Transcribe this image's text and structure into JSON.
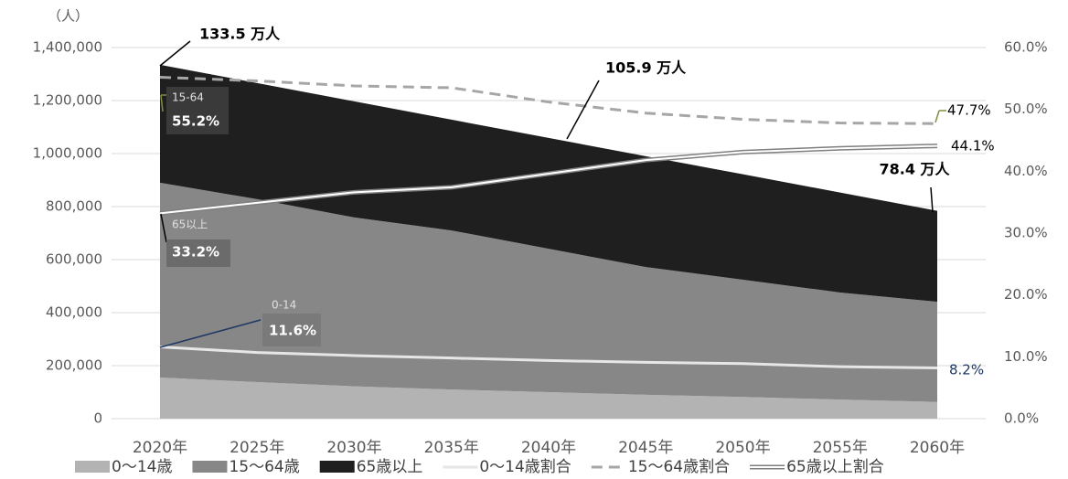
{
  "chart_data": {
    "type": "stacked_area_line",
    "y_unit_label": "（人）",
    "categories": [
      "2020年",
      "2025年",
      "2030年",
      "2035年",
      "2040年",
      "2045年",
      "2050年",
      "2055年",
      "2060年"
    ],
    "series": [
      {
        "name": "0〜14歳",
        "color": "#b3b3b3",
        "values": [
          155000,
          138000,
          122000,
          110000,
          100000,
          90000,
          82000,
          72000,
          63000
        ]
      },
      {
        "name": "15〜64歳",
        "color": "#878787",
        "values": [
          735000,
          690000,
          637000,
          600000,
          541000,
          482000,
          442000,
          404000,
          378000
        ]
      },
      {
        "name": "65歳以上",
        "color": "#1f1f1f",
        "values": [
          445000,
          438000,
          438000,
          418000,
          418000,
          418000,
          398000,
          377000,
          343000
        ]
      },
      {
        "name": "0〜14歳割合",
        "color": "#e6e6e6",
        "axis": "y2",
        "values": [
          11.6,
          10.7,
          10.2,
          9.8,
          9.4,
          9.1,
          8.9,
          8.4,
          8.2
        ]
      },
      {
        "name": "15〜64歳割合",
        "color": "#a6a6a6",
        "axis": "y2",
        "dash": true,
        "values": [
          55.2,
          54.6,
          53.8,
          53.5,
          51.2,
          49.4,
          48.4,
          47.8,
          47.7
        ]
      },
      {
        "name": "65歳以上割合",
        "color": "#7f7f7f",
        "axis": "y2",
        "double": true,
        "values": [
          33.2,
          34.9,
          36.6,
          37.4,
          39.6,
          41.8,
          43.1,
          43.7,
          44.1
        ]
      }
    ],
    "ylim": [
      0,
      1400000
    ],
    "yticks": [
      0,
      {
        "value": 200000,
        "label": "200,000"
      },
      {
        "value": 400000,
        "label": "400,000"
      },
      {
        "value": 600000,
        "label": "600,000"
      },
      {
        "value": 800000,
        "label": "800,000"
      },
      {
        "value": 1000000,
        "label": "1,000,000"
      },
      {
        "value": 1200000,
        "label": "1,200,000"
      },
      {
        "value": 1400000,
        "label": "1,400,000"
      }
    ],
    "y2lim": [
      0,
      60
    ],
    "y2ticks": [
      {
        "value": 0,
        "label": "0.0%"
      },
      {
        "value": 10,
        "label": "10.0%"
      },
      {
        "value": 20,
        "label": "20.0%"
      },
      {
        "value": 30,
        "label": "30.0%"
      },
      {
        "value": 40,
        "label": "40.0%"
      },
      {
        "value": 50,
        "label": "50.0%"
      },
      {
        "value": 60,
        "label": "60.0%"
      }
    ],
    "annotations": [
      "133.5 万人",
      "105.9 万人",
      "78.4 万人",
      "15-64",
      "55.2%",
      "65以上",
      "33.2%",
      "0-14",
      "11.6%",
      "47.7%",
      "44.1%",
      "8.2%"
    ]
  }
}
